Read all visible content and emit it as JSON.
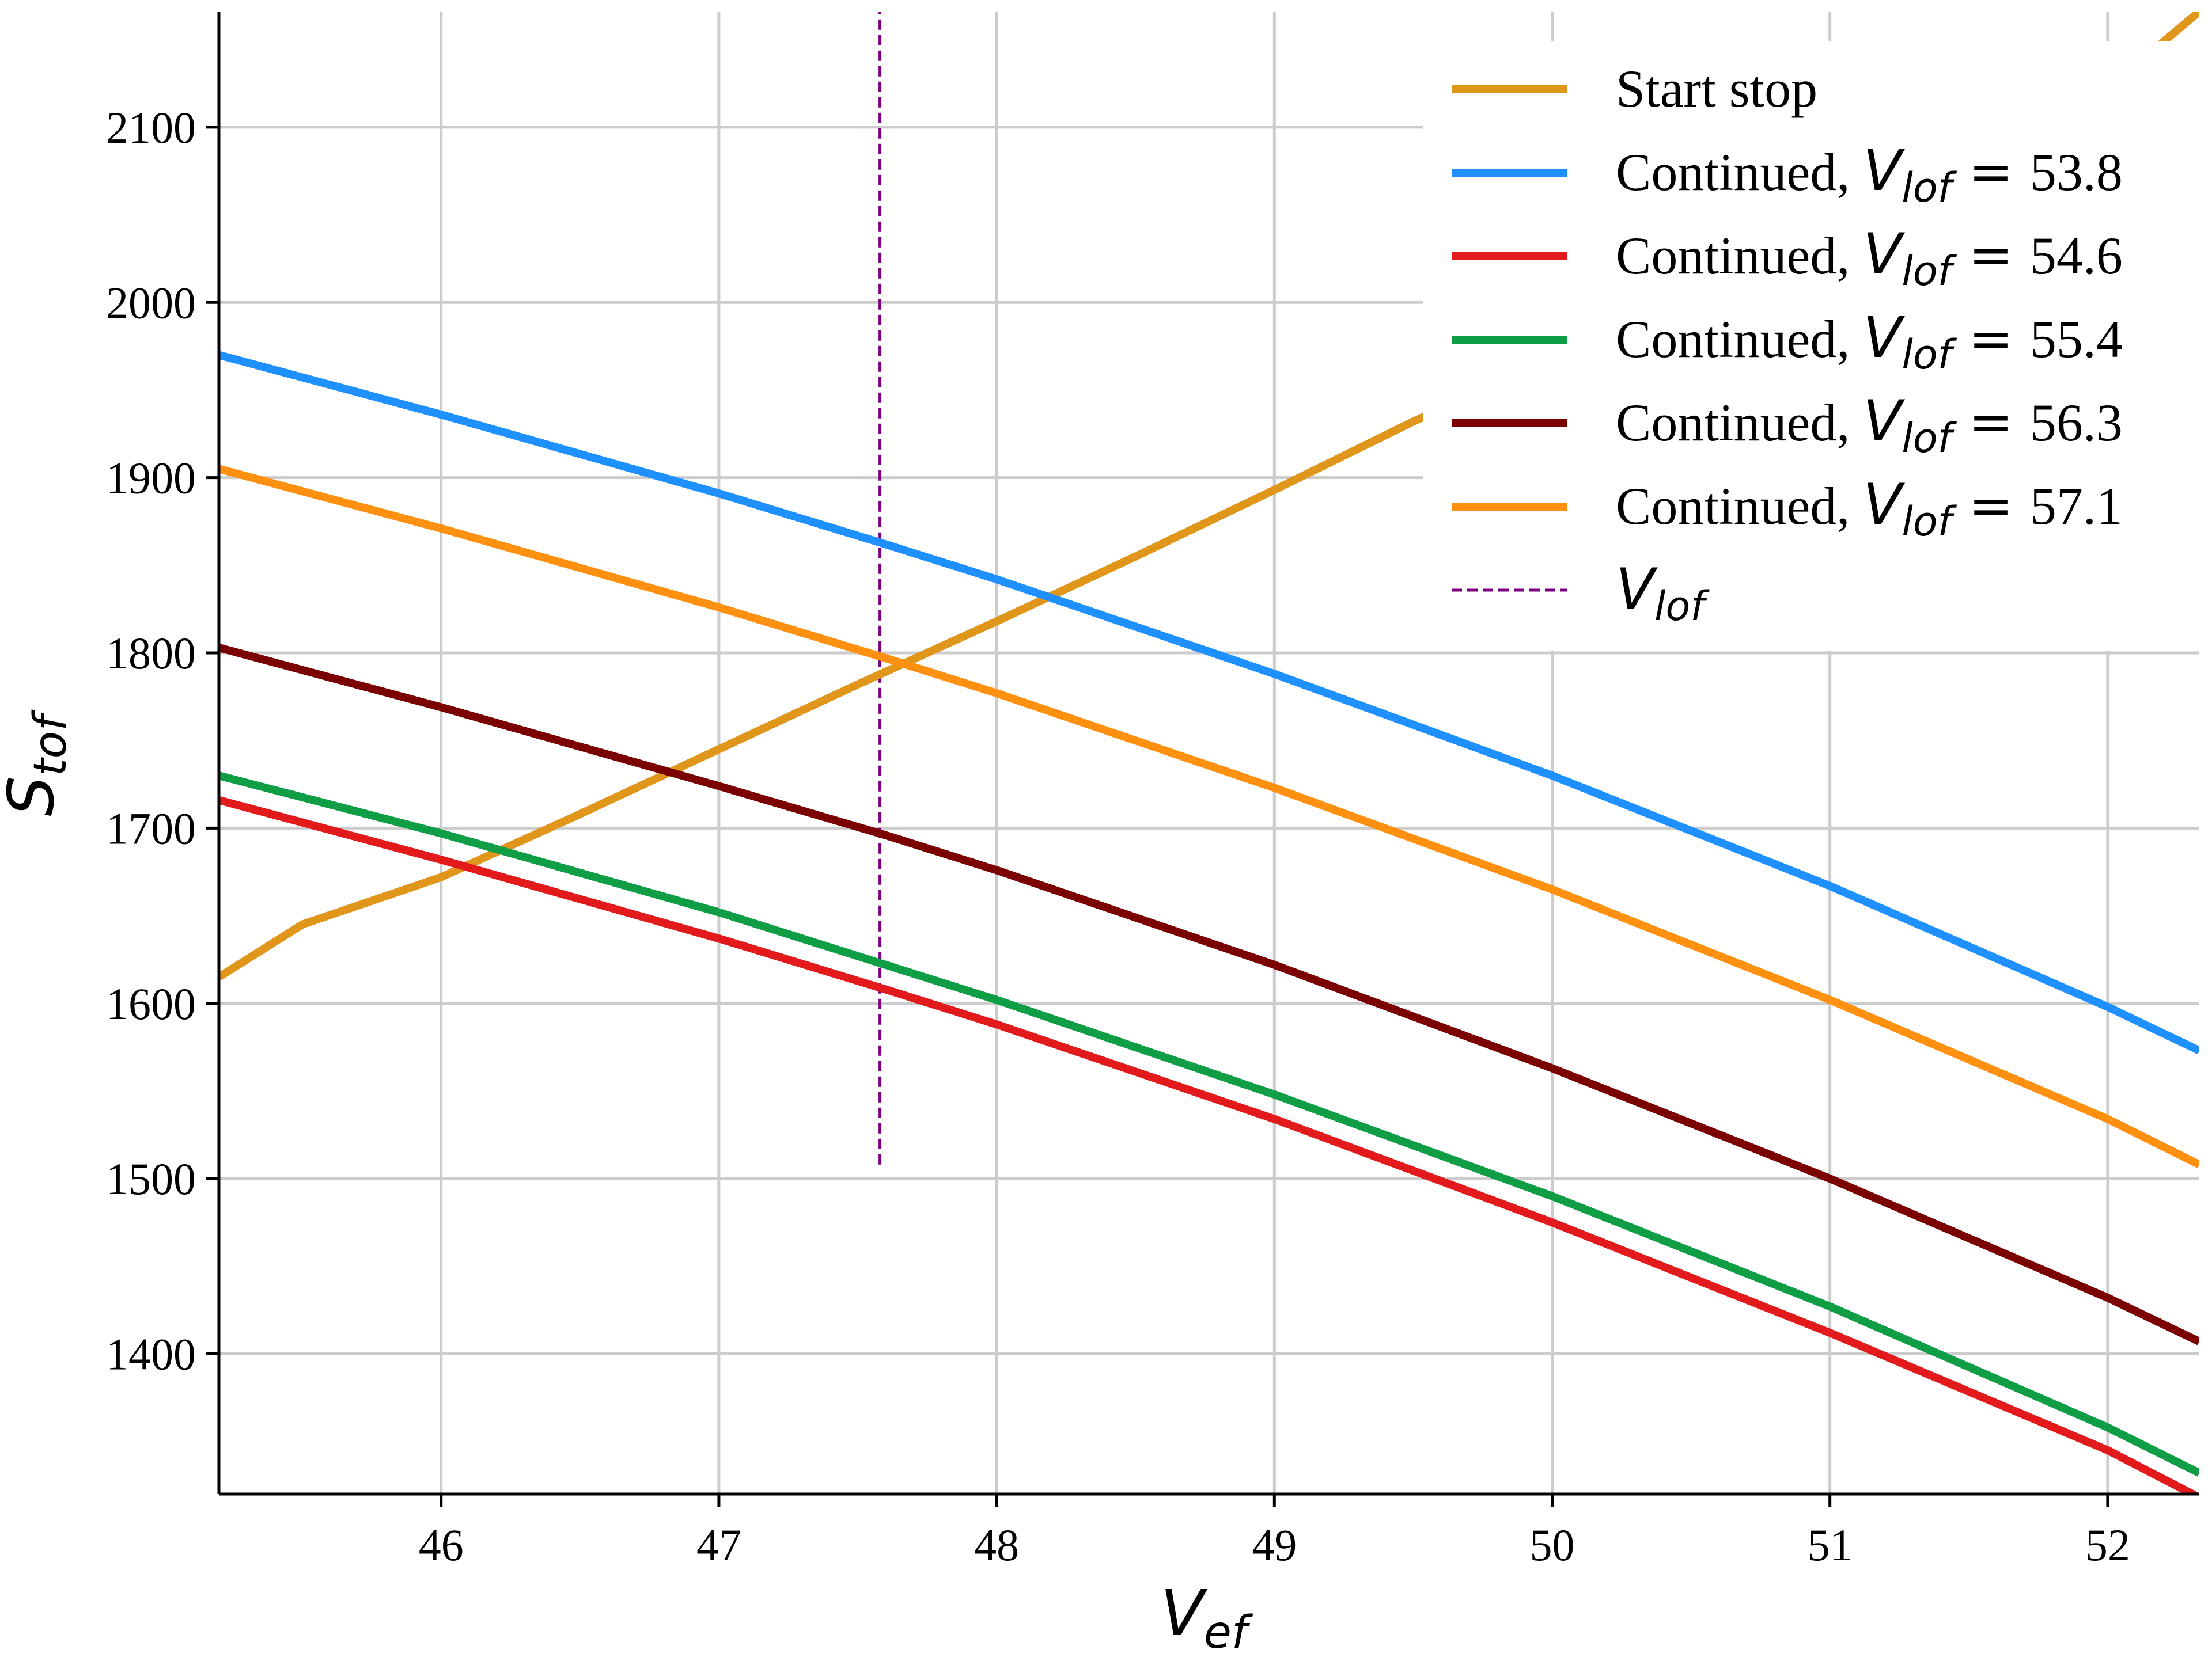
{
  "chart_data": {
    "type": "line",
    "title": "",
    "xlabel": "V_ef",
    "ylabel": "S_tof",
    "xlim": [
      45.2,
      52.33
    ],
    "ylim": [
      1320,
      2166
    ],
    "xticks": [
      46,
      47,
      48,
      49,
      50,
      51,
      52
    ],
    "yticks": [
      1400,
      1500,
      1600,
      1700,
      1800,
      1900,
      2000,
      2100
    ],
    "grid": true,
    "legend_position": "top-right",
    "series": [
      {
        "name": "Start stop",
        "label_text": "Start stop",
        "color": "#E0961A",
        "style": "solid",
        "x": [
          45.2,
          45.5,
          46.0,
          46.5,
          47.0,
          47.5,
          48.0,
          48.5,
          49.0,
          49.5,
          50.0,
          50.5,
          51.0,
          51.5,
          52.0,
          52.33
        ],
        "y": [
          1615,
          1645,
          1672,
          1708,
          1745,
          1782,
          1818,
          1855,
          1893,
          1932,
          1968,
          2005,
          2040,
          2078,
          2122,
          2166
        ]
      },
      {
        "name": "Continued, V_lof = 53.8",
        "label_text": "Continued, ",
        "label_value": "53.8",
        "color": "#1E90FF",
        "style": "solid",
        "x": [
          45.2,
          46.0,
          47.0,
          47.6,
          48.0,
          49.0,
          50.0,
          51.0,
          52.0,
          52.33
        ],
        "y": [
          1970,
          1936,
          1891,
          1862,
          1842,
          1788,
          1730,
          1667,
          1598,
          1573
        ]
      },
      {
        "name": "Continued, V_lof = 54.6",
        "label_text": "Continued, ",
        "label_value": "54.6",
        "color": "#E31A1C",
        "style": "solid",
        "x": [
          45.2,
          46.0,
          47.0,
          47.6,
          48.0,
          49.0,
          50.0,
          51.0,
          52.0,
          52.33
        ],
        "y": [
          1716,
          1682,
          1637,
          1608,
          1588,
          1534,
          1475,
          1412,
          1345,
          1318
        ]
      },
      {
        "name": "Continued, V_lof = 55.4",
        "label_text": "Continued, ",
        "label_value": "55.4",
        "color": "#0F9E45",
        "style": "solid",
        "x": [
          45.2,
          46.0,
          47.0,
          47.6,
          48.0,
          49.0,
          50.0,
          51.0,
          52.0,
          52.33
        ],
        "y": [
          1730,
          1697,
          1652,
          1622,
          1602,
          1548,
          1490,
          1427,
          1358,
          1332
        ]
      },
      {
        "name": "Continued, V_lof = 56.3",
        "label_text": "Continued, ",
        "label_value": "56.3",
        "color": "#7B0000",
        "style": "solid",
        "x": [
          45.2,
          46.0,
          47.0,
          47.6,
          48.0,
          49.0,
          50.0,
          51.0,
          52.0,
          52.33
        ],
        "y": [
          1803,
          1769,
          1724,
          1696,
          1676,
          1622,
          1563,
          1500,
          1432,
          1407
        ]
      },
      {
        "name": "Continued, V_lof = 57.1",
        "label_text": "Continued, ",
        "label_value": "57.1",
        "color": "#FF9010",
        "style": "solid",
        "x": [
          45.2,
          46.0,
          47.0,
          47.6,
          48.0,
          49.0,
          50.0,
          51.0,
          52.0,
          52.33
        ],
        "y": [
          1905,
          1871,
          1826,
          1797,
          1777,
          1723,
          1665,
          1602,
          1534,
          1508
        ]
      }
    ],
    "vline": {
      "name": "V_lof",
      "x": 47.58,
      "y_range": [
        1508,
        2166
      ],
      "color": "#7B0080",
      "style": "dashed"
    }
  },
  "labels": {
    "x_main": "V",
    "x_sub": "ef",
    "y_main": "S",
    "y_sub": "tof",
    "legend_sym": "V",
    "legend_sub": "lof",
    "legend_eq": " = "
  }
}
